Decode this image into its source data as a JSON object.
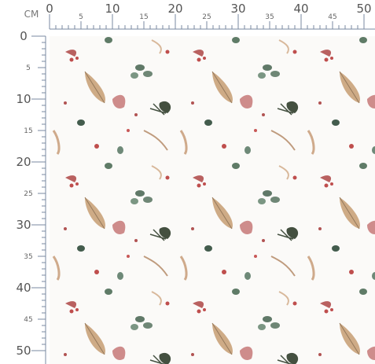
{
  "unit": "CM",
  "top_ruler": {
    "labels": [
      0,
      5,
      10,
      15,
      20,
      25,
      30,
      35,
      40,
      45,
      50
    ]
  },
  "left_ruler": {
    "labels": [
      0,
      5,
      10,
      15,
      20,
      25,
      30,
      35,
      40,
      45,
      50
    ]
  }
}
